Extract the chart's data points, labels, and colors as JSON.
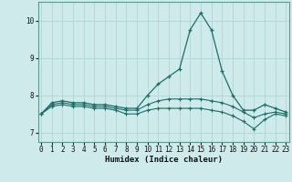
{
  "xlabel": "Humidex (Indice chaleur)",
  "background_color": "#ceeaea",
  "line_color": "#1a6e6a",
  "grid_color": "#afd4d4",
  "x": [
    0,
    1,
    2,
    3,
    4,
    5,
    6,
    7,
    8,
    9,
    10,
    11,
    12,
    13,
    14,
    15,
    16,
    17,
    18,
    19,
    20,
    21,
    22,
    23
  ],
  "y_main": [
    7.5,
    7.8,
    7.85,
    7.8,
    7.8,
    7.75,
    7.75,
    7.7,
    7.65,
    7.65,
    8.0,
    8.3,
    8.5,
    8.7,
    9.75,
    10.2,
    9.75,
    8.65,
    8.0,
    7.6,
    7.6,
    7.75,
    7.65,
    7.55
  ],
  "y_mid": [
    7.5,
    7.75,
    7.8,
    7.75,
    7.75,
    7.7,
    7.7,
    7.65,
    7.6,
    7.6,
    7.75,
    7.85,
    7.9,
    7.9,
    7.9,
    7.9,
    7.85,
    7.8,
    7.7,
    7.55,
    7.4,
    7.5,
    7.55,
    7.5
  ],
  "y_low": [
    7.5,
    7.7,
    7.75,
    7.7,
    7.7,
    7.65,
    7.65,
    7.6,
    7.5,
    7.5,
    7.6,
    7.65,
    7.65,
    7.65,
    7.65,
    7.65,
    7.6,
    7.55,
    7.45,
    7.3,
    7.1,
    7.35,
    7.5,
    7.45
  ],
  "ylim": [
    6.75,
    10.5
  ],
  "yticks": [
    7,
    8,
    9,
    10
  ],
  "xticks": [
    0,
    1,
    2,
    3,
    4,
    5,
    6,
    7,
    8,
    9,
    10,
    11,
    12,
    13,
    14,
    15,
    16,
    17,
    18,
    19,
    20,
    21,
    22,
    23
  ],
  "xlim": [
    -0.3,
    23.3
  ]
}
